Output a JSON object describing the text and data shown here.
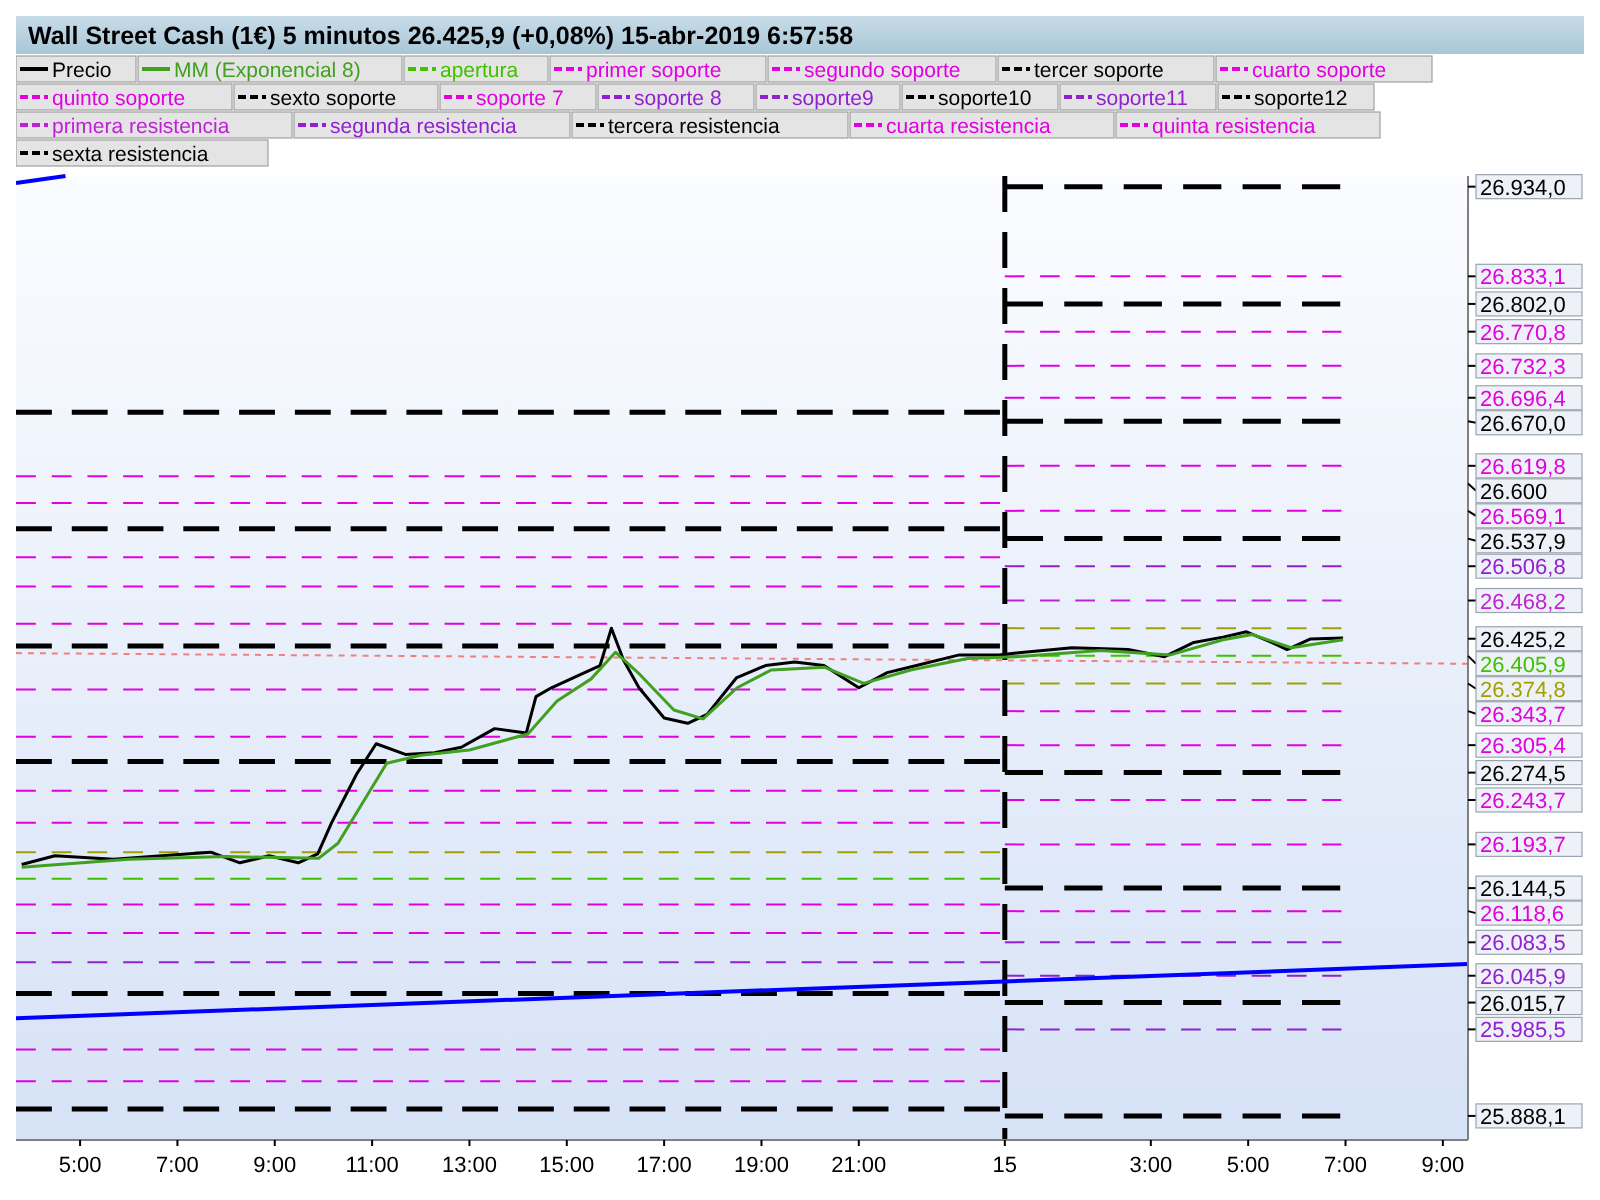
{
  "chart_data": {
    "type": "line",
    "title": "Wall Street Cash (1€)   5 minutos   26.425,9 (+0,08%)   15-abr-2019 6:57:58",
    "legend": "top",
    "grid": false,
    "xlim": [
      "2019-04-14T03:41",
      "2019-04-15T09:31"
    ],
    "ylim": [
      25861,
      26946
    ],
    "xticks": [
      {
        "value": "2019-04-14T05:00",
        "label": "5:00"
      },
      {
        "value": "2019-04-14T07:00",
        "label": "7:00"
      },
      {
        "value": "2019-04-14T09:00",
        "label": "9:00"
      },
      {
        "value": "2019-04-14T11:00",
        "label": "11:00"
      },
      {
        "value": "2019-04-14T13:00",
        "label": "13:00"
      },
      {
        "value": "2019-04-14T15:00",
        "label": "15:00"
      },
      {
        "value": "2019-04-14T17:00",
        "label": "17:00"
      },
      {
        "value": "2019-04-14T19:00",
        "label": "19:00"
      },
      {
        "value": "2019-04-14T21:00",
        "label": "21:00"
      },
      {
        "value": "2019-04-15T00:00",
        "label": "15"
      },
      {
        "value": "2019-04-15T03:00",
        "label": "3:00"
      },
      {
        "value": "2019-04-15T05:00",
        "label": "5:00"
      },
      {
        "value": "2019-04-15T07:00",
        "label": "7:00"
      },
      {
        "value": "2019-04-15T09:00",
        "label": "9:00"
      }
    ],
    "yticks": [
      {
        "value": 26934,
        "label": "26.934,0"
      },
      {
        "value": 26833.1,
        "label": "26.833,1"
      },
      {
        "value": 26802,
        "label": "26.802,0"
      },
      {
        "value": 26770.8,
        "label": "26.770,8"
      },
      {
        "value": 26732.3,
        "label": "26.732,3"
      },
      {
        "value": 26696.4,
        "label": "26.696,4"
      },
      {
        "value": 26670,
        "label": "26.670,0"
      },
      {
        "value": 26619.8,
        "label": "26.619,8"
      },
      {
        "value": 26600,
        "label": "26.600"
      },
      {
        "value": 26569.1,
        "label": "26.569,1"
      },
      {
        "value": 26537.9,
        "label": "26.537,9"
      },
      {
        "value": 26506.8,
        "label": "26.506,8"
      },
      {
        "value": 26468.2,
        "label": "26.468,2"
      },
      {
        "value": 26425.2,
        "label": "26.425,2"
      },
      {
        "value": 26405.9,
        "label": "26.405,9"
      },
      {
        "value": 26374.8,
        "label": "26.374,8"
      },
      {
        "value": 26343.7,
        "label": "26.343,7"
      },
      {
        "value": 26305.4,
        "label": "26.305,4"
      },
      {
        "value": 26274.5,
        "label": "26.274,5"
      },
      {
        "value": 26243.7,
        "label": "26.243,7"
      },
      {
        "value": 26193.7,
        "label": "26.193,7"
      },
      {
        "value": 26144.5,
        "label": "26.144,5"
      },
      {
        "value": 26118.6,
        "label": "26.118,6"
      },
      {
        "value": 26083.5,
        "label": "26.083,5"
      },
      {
        "value": 26045.9,
        "label": "26.045,9"
      },
      {
        "value": 26015.7,
        "label": "26.015,7"
      },
      {
        "value": 25985.5,
        "label": "25.985,5"
      },
      {
        "value": 25888.1,
        "label": "25.888,1"
      }
    ],
    "ref_lines": [
      {
        "axis": "x",
        "value": "2019-04-15T00:00",
        "color": "#000000",
        "line_style": "dashed"
      }
    ],
    "series": [
      {
        "name": "Precio",
        "color": "#000000",
        "line_style": "solid",
        "x": [
          "2019-04-14T03:48",
          "2019-04-14T04:29",
          "2019-04-14T05:41",
          "2019-04-14T06:41",
          "2019-04-14T07:41",
          "2019-04-14T08:17",
          "2019-04-14T08:53",
          "2019-04-14T09:29",
          "2019-04-14T09:53",
          "2019-04-14T10:10",
          "2019-04-14T10:41",
          "2019-04-14T11:05",
          "2019-04-14T11:41",
          "2019-04-14T12:17",
          "2019-04-14T12:50",
          "2019-04-14T13:31",
          "2019-04-14T14:10",
          "2019-04-14T14:22",
          "2019-04-14T14:41",
          "2019-04-14T15:22",
          "2019-04-14T15:41",
          "2019-04-14T15:55",
          "2019-04-14T16:10",
          "2019-04-14T16:29",
          "2019-04-14T17:00",
          "2019-04-14T17:29",
          "2019-04-14T17:53",
          "2019-04-14T18:29",
          "2019-04-14T19:05",
          "2019-04-14T19:41",
          "2019-04-14T20:17",
          "2019-04-14T21:00",
          "2019-04-14T21:35",
          "2019-04-14T22:11",
          "2019-04-14T23:04",
          "2019-04-14T23:53",
          "2019-04-15T00:14",
          "2019-04-15T01:23",
          "2019-04-15T02:32",
          "2019-04-15T03:17",
          "2019-04-15T03:53",
          "2019-04-15T04:29",
          "2019-04-15T04:58",
          "2019-04-15T05:29",
          "2019-04-15T05:48",
          "2019-04-15T06:17",
          "2019-04-15T06:57"
        ],
        "values": [
          26171,
          26181,
          26177,
          26181,
          26185,
          26173,
          26181,
          26173,
          26183,
          26218,
          26273,
          26307,
          26295,
          26297,
          26303,
          26324,
          26319,
          26360,
          26370,
          26387,
          26395,
          26437,
          26401,
          26370,
          26336,
          26330,
          26340,
          26381,
          26395,
          26399,
          26395,
          26370,
          26387,
          26395,
          26407,
          26407,
          26409,
          26415,
          26413,
          26405,
          26421,
          26427,
          26433,
          26421,
          26413,
          26425,
          26426
        ]
      },
      {
        "name": "MM (Exponencial 8)",
        "color": "#40a020",
        "line_style": "solid",
        "x": [
          "2019-04-14T03:48",
          "2019-04-14T06:00",
          "2019-04-14T08:00",
          "2019-04-14T09:54",
          "2019-04-14T10:18",
          "2019-04-14T10:48",
          "2019-04-14T11:18",
          "2019-04-14T12:00",
          "2019-04-14T13:00",
          "2019-04-14T14:12",
          "2019-04-14T14:48",
          "2019-04-14T15:30",
          "2019-04-14T16:00",
          "2019-04-14T16:30",
          "2019-04-14T17:12",
          "2019-04-14T17:48",
          "2019-04-14T18:30",
          "2019-04-14T19:12",
          "2019-04-14T20:18",
          "2019-04-14T21:06",
          "2019-04-14T22:04",
          "2019-04-14T23:14",
          "2019-04-15T00:14",
          "2019-04-15T01:58",
          "2019-04-15T03:24",
          "2019-04-15T04:29",
          "2019-04-15T05:05",
          "2019-04-15T05:53",
          "2019-04-15T06:57"
        ],
        "values": [
          26168,
          26177,
          26180,
          26178,
          26195,
          26240,
          26285,
          26294,
          26300,
          26318,
          26355,
          26380,
          26410,
          26385,
          26345,
          26335,
          26370,
          26390,
          26393,
          26375,
          26390,
          26403,
          26405,
          26412,
          26407,
          26424,
          26430,
          26415,
          26424
        ]
      },
      {
        "name": "apertura",
        "color": "#40c000",
        "line_style": "dashed",
        "x": [
          "2019-04-15T00:00",
          "2019-04-15T06:55"
        ],
        "values": [
          26405.9,
          26405.9
        ]
      },
      {
        "name": "primer soporte",
        "color": "#e000e0",
        "line_style": "dashed",
        "x": [
          "2019-04-15T00:00",
          "2019-04-15T06:55"
        ],
        "values": [
          26343.7,
          26343.7
        ]
      },
      {
        "name": "segundo soporte",
        "color": "#e000e0",
        "line_style": "dashed",
        "x": [
          "2019-04-15T00:00",
          "2019-04-15T06:55"
        ],
        "values": [
          26305.4,
          26305.4
        ]
      },
      {
        "name": "tercer soporte",
        "color": "#000000",
        "line_style": "dashed",
        "x": [
          "2019-04-15T00:00",
          "2019-04-15T06:55"
        ],
        "values": [
          26274.5,
          26274.5
        ]
      },
      {
        "name": "cuarto soporte",
        "color": "#e000e0",
        "line_style": "dashed",
        "x": [
          "2019-04-15T00:00",
          "2019-04-15T06:55"
        ],
        "values": [
          26243.7,
          26243.7
        ]
      },
      {
        "name": "quinto soporte",
        "color": "#e000e0",
        "line_style": "dashed",
        "x": [
          "2019-04-15T00:00",
          "2019-04-15T06:55"
        ],
        "values": [
          26193.7,
          26193.7
        ]
      },
      {
        "name": "sexto soporte",
        "color": "#000000",
        "line_style": "dashed",
        "x": [
          "2019-04-15T00:00",
          "2019-04-15T06:55"
        ],
        "values": [
          26144.5,
          26144.5
        ]
      },
      {
        "name": "soporte 7",
        "color": "#e000e0",
        "line_style": "dashed",
        "x": [
          "2019-04-15T00:00",
          "2019-04-15T06:55"
        ],
        "values": [
          26118.6,
          26118.6
        ]
      },
      {
        "name": "soporte 8",
        "color": "#9020d0",
        "line_style": "dashed",
        "x": [
          "2019-04-15T00:00",
          "2019-04-15T06:55"
        ],
        "values": [
          26083.5,
          26083.5
        ]
      },
      {
        "name": "soporte9",
        "color": "#9020d0",
        "line_style": "dashed",
        "x": [
          "2019-04-15T00:00",
          "2019-04-15T06:55"
        ],
        "values": [
          26045.9,
          26045.9
        ]
      },
      {
        "name": "soporte10",
        "color": "#000000",
        "line_style": "dashed",
        "x": [
          "2019-04-15T00:00",
          "2019-04-15T06:55"
        ],
        "values": [
          26015.7,
          26015.7
        ]
      },
      {
        "name": "soporte11",
        "color": "#9020d0",
        "line_style": "dashed",
        "x": [
          "2019-04-15T00:00",
          "2019-04-15T06:55"
        ],
        "values": [
          25985.5,
          25985.5
        ]
      },
      {
        "name": "soporte12",
        "color": "#000000",
        "line_style": "dashed",
        "x": [
          "2019-04-15T00:00",
          "2019-04-15T06:55"
        ],
        "values": [
          25888.1,
          25888.1
        ]
      },
      {
        "name": "primera resistencia",
        "color": "#c020d8",
        "line_style": "dashed",
        "x": [
          "2019-04-15T00:00",
          "2019-04-15T06:55"
        ],
        "values": [
          26468.2,
          26468.2
        ]
      },
      {
        "name": "segunda resistencia",
        "color": "#9020d0",
        "line_style": "dashed",
        "x": [
          "2019-04-15T00:00",
          "2019-04-15T06:55"
        ],
        "values": [
          26506.8,
          26506.8
        ]
      },
      {
        "name": "tercera resistencia",
        "color": "#000000",
        "line_style": "dashed",
        "x": [
          "2019-04-15T00:00",
          "2019-04-15T06:55"
        ],
        "values": [
          26537.9,
          26537.9
        ]
      },
      {
        "name": "cuarta resistencia",
        "color": "#e000e0",
        "line_style": "dashed",
        "x": [
          "2019-04-15T00:00",
          "2019-04-15T06:55"
        ],
        "values": [
          26569.1,
          26569.1
        ]
      },
      {
        "name": "quinta resistencia",
        "color": "#e000e0",
        "line_style": "dashed",
        "x": [
          "2019-04-15T00:00",
          "2019-04-15T06:55"
        ],
        "values": [
          26619.8,
          26619.8
        ]
      },
      {
        "name": "sexta resistencia",
        "color": "#000000",
        "line_style": "dashed",
        "x": [
          "2019-04-15T00:00",
          "2019-04-15T06:55"
        ],
        "values": [
          26670,
          26670
        ]
      },
      {
        "color": "#e000e0",
        "line_style": "dashed",
        "x": [
          "2019-04-15T00:00",
          "2019-04-15T06:55"
        ],
        "values": [
          26696.4,
          26696.4
        ]
      },
      {
        "color": "#e000e0",
        "line_style": "dashed",
        "x": [
          "2019-04-15T00:00",
          "2019-04-15T06:55"
        ],
        "values": [
          26732.3,
          26732.3
        ]
      },
      {
        "color": "#e000e0",
        "line_style": "dashed",
        "x": [
          "2019-04-15T00:00",
          "2019-04-15T06:55"
        ],
        "values": [
          26770.8,
          26770.8
        ]
      },
      {
        "color": "#000000",
        "line_style": "dashed",
        "x": [
          "2019-04-15T00:00",
          "2019-04-15T06:55"
        ],
        "values": [
          26802,
          26802
        ]
      },
      {
        "color": "#e000e0",
        "line_style": "dashed",
        "x": [
          "2019-04-15T00:00",
          "2019-04-15T06:55"
        ],
        "values": [
          26833.1,
          26833.1
        ]
      },
      {
        "color": "#000000",
        "line_style": "dashed",
        "x": [
          "2019-04-15T00:00",
          "2019-04-15T06:55"
        ],
        "values": [
          26934,
          26934
        ]
      },
      {
        "color": "#a0a000",
        "line_style": "dashed",
        "x": [
          "2019-04-15T00:00",
          "2019-04-15T06:55"
        ],
        "values": [
          26437.1,
          26437.1
        ]
      },
      {
        "color": "#a0a000",
        "line_style": "dashed",
        "x": [
          "2019-04-15T00:00",
          "2019-04-15T06:55"
        ],
        "values": [
          26374.8,
          26374.8
        ]
      },
      {
        "color": "#000000",
        "line_style": "dashed",
        "x": [
          "2019-04-14T03:41",
          "2019-04-14T23:54"
        ],
        "values": [
          26680,
          26680
        ]
      },
      {
        "color": "#e000e0",
        "line_style": "dashed",
        "x": [
          "2019-04-14T03:41",
          "2019-04-14T23:54"
        ],
        "values": [
          26608,
          26608
        ]
      },
      {
        "color": "#e000e0",
        "line_style": "dashed",
        "x": [
          "2019-04-14T03:41",
          "2019-04-14T23:54"
        ],
        "values": [
          26578,
          26578
        ]
      },
      {
        "color": "#000000",
        "line_style": "dashed",
        "x": [
          "2019-04-14T03:41",
          "2019-04-14T23:54"
        ],
        "values": [
          26549,
          26549
        ]
      },
      {
        "color": "#e000e0",
        "line_style": "dashed",
        "x": [
          "2019-04-14T03:41",
          "2019-04-14T23:54"
        ],
        "values": [
          26517,
          26517
        ]
      },
      {
        "color": "#e000e0",
        "line_style": "dashed",
        "x": [
          "2019-04-14T03:41",
          "2019-04-14T23:54"
        ],
        "values": [
          26484,
          26484
        ]
      },
      {
        "color": "#e000e0",
        "line_style": "dashed",
        "x": [
          "2019-04-14T03:41",
          "2019-04-14T23:54"
        ],
        "values": [
          26442,
          26442
        ]
      },
      {
        "color": "#000000",
        "line_style": "dashed",
        "x": [
          "2019-04-14T03:41",
          "2019-04-14T23:54"
        ],
        "values": [
          26417,
          26417
        ]
      },
      {
        "color": "#e000e0",
        "line_style": "dashed",
        "x": [
          "2019-04-14T03:41",
          "2019-04-14T23:54"
        ],
        "values": [
          26368,
          26368
        ]
      },
      {
        "color": "#e000e0",
        "line_style": "dashed",
        "x": [
          "2019-04-14T03:41",
          "2019-04-14T23:54"
        ],
        "values": [
          26315,
          26315
        ]
      },
      {
        "color": "#000000",
        "line_style": "dashed",
        "x": [
          "2019-04-14T03:41",
          "2019-04-14T23:54"
        ],
        "values": [
          26287,
          26287
        ]
      },
      {
        "color": "#e000e0",
        "line_style": "dashed",
        "x": [
          "2019-04-14T03:41",
          "2019-04-14T23:54"
        ],
        "values": [
          26254,
          26254
        ]
      },
      {
        "color": "#e000e0",
        "line_style": "dashed",
        "x": [
          "2019-04-14T03:41",
          "2019-04-14T23:54"
        ],
        "values": [
          26218,
          26218
        ]
      },
      {
        "color": "#a0a000",
        "line_style": "dashed",
        "x": [
          "2019-04-14T03:41",
          "2019-04-14T23:54"
        ],
        "values": [
          26185,
          26185
        ]
      },
      {
        "color": "#40c000",
        "line_style": "dashed",
        "x": [
          "2019-04-14T03:41",
          "2019-04-14T23:54"
        ],
        "values": [
          26155,
          26155
        ]
      },
      {
        "color": "#e000e0",
        "line_style": "dashed",
        "x": [
          "2019-04-14T03:41",
          "2019-04-14T23:54"
        ],
        "values": [
          26126,
          26126
        ]
      },
      {
        "color": "#e000e0",
        "line_style": "dashed",
        "x": [
          "2019-04-14T03:41",
          "2019-04-14T23:54"
        ],
        "values": [
          26094,
          26094
        ]
      },
      {
        "color": "#9020d0",
        "line_style": "dashed",
        "x": [
          "2019-04-14T03:41",
          "2019-04-14T23:54"
        ],
        "values": [
          26061,
          26061
        ]
      },
      {
        "color": "#000000",
        "line_style": "dashed",
        "x": [
          "2019-04-14T03:41",
          "2019-04-14T23:54"
        ],
        "values": [
          26026,
          26026
        ]
      },
      {
        "color": "#e000e0",
        "line_style": "dashed",
        "x": [
          "2019-04-14T03:41",
          "2019-04-14T23:54"
        ],
        "values": [
          25963,
          25963
        ]
      },
      {
        "color": "#e000e0",
        "line_style": "dashed",
        "x": [
          "2019-04-14T03:41",
          "2019-04-14T23:54"
        ],
        "values": [
          25927,
          25927
        ]
      },
      {
        "color": "#000000",
        "line_style": "dashed",
        "x": [
          "2019-04-14T03:41",
          "2019-04-14T23:54"
        ],
        "values": [
          25896,
          25896
        ]
      },
      {
        "color": "#f08080",
        "line_style": "dotted",
        "x": [
          "2019-04-14T03:41",
          "2019-04-15T09:31"
        ],
        "values": [
          26409,
          26397
        ]
      },
      {
        "color": "#0000ff",
        "line_style": "solid",
        "x": [
          "2019-04-14T03:41",
          "2019-04-15T09:31"
        ],
        "values": [
          25998,
          26059
        ]
      },
      {
        "color": "#0000ff",
        "line_style": "solid",
        "x": [
          "2019-04-14T03:41",
          "2019-04-14T04:42"
        ],
        "values": [
          26938,
          26946
        ]
      }
    ]
  }
}
